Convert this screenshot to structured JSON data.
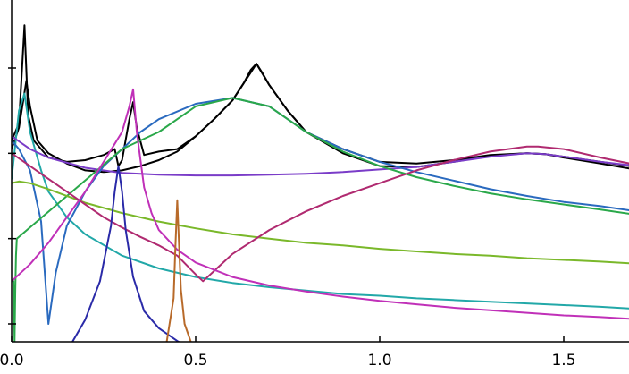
{
  "chart_data": {
    "type": "line",
    "title": "",
    "xlabel": "",
    "ylabel": "",
    "xlim": [
      0.0,
      1.68
    ],
    "ylim": [
      -2.25,
      1.55
    ],
    "x_ticks": [
      0.0,
      0.5,
      1.0,
      1.5
    ],
    "x_tick_labels": [
      "0.0",
      "0.5",
      "1.0",
      "1.5"
    ],
    "y_ticks": [
      -2,
      -1,
      0,
      1
    ],
    "grid": false,
    "legend": "none",
    "series": [
      {
        "color": "#000000",
        "x": [
          0.0,
          0.02,
          0.035,
          0.045,
          0.06,
          0.1,
          0.15,
          0.2,
          0.25,
          0.28,
          0.29,
          0.3,
          0.32,
          0.33,
          0.34,
          0.36,
          0.4,
          0.45,
          0.5,
          0.55,
          0.6,
          0.63,
          0.65,
          0.665,
          0.68,
          0.7,
          0.75,
          0.8,
          0.9,
          1.0,
          1.1,
          1.2,
          1.3,
          1.4,
          1.45,
          1.5,
          1.6,
          1.68
        ],
        "y": [
          0.15,
          0.35,
          1.5,
          0.45,
          0.15,
          -0.05,
          -0.1,
          -0.08,
          -0.02,
          0.05,
          -0.15,
          -0.08,
          0.4,
          0.6,
          0.3,
          -0.02,
          0.02,
          0.05,
          0.2,
          0.4,
          0.62,
          0.82,
          0.98,
          1.05,
          0.95,
          0.8,
          0.5,
          0.25,
          0.05,
          -0.1,
          -0.12,
          -0.08,
          -0.02,
          0.0,
          -0.01,
          -0.05,
          -0.12,
          -0.18
        ]
      },
      {
        "color": "#000000",
        "x": [
          0.0,
          0.02,
          0.04,
          0.05,
          0.07,
          0.1,
          0.15,
          0.2,
          0.25,
          0.3,
          0.35,
          0.4,
          0.45,
          0.5,
          0.55,
          0.6,
          0.65,
          0.665,
          0.7,
          0.75,
          0.8,
          0.9,
          1.0,
          1.1,
          1.2,
          1.3,
          1.4,
          1.45,
          1.5,
          1.6,
          1.68
        ],
        "y": [
          0.05,
          0.3,
          0.85,
          0.55,
          0.15,
          0.0,
          -0.12,
          -0.2,
          -0.22,
          -0.2,
          -0.15,
          -0.08,
          0.02,
          0.2,
          0.4,
          0.62,
          0.95,
          1.05,
          0.8,
          0.5,
          0.25,
          0.0,
          -0.15,
          -0.16,
          -0.1,
          -0.03,
          0.0,
          -0.01,
          -0.04,
          -0.1,
          -0.15
        ]
      },
      {
        "color": "#22a8a8",
        "x": [
          0.0,
          0.02,
          0.035,
          0.05,
          0.08,
          0.1,
          0.15,
          0.2,
          0.3,
          0.4,
          0.5,
          0.6,
          0.7,
          0.8,
          0.9,
          1.0,
          1.1,
          1.2,
          1.3,
          1.4,
          1.5,
          1.6,
          1.68
        ],
        "y": [
          -0.3,
          0.5,
          0.7,
          0.25,
          -0.2,
          -0.45,
          -0.75,
          -0.95,
          -1.2,
          -1.35,
          -1.45,
          -1.52,
          -1.57,
          -1.61,
          -1.65,
          -1.67,
          -1.7,
          -1.72,
          -1.74,
          -1.76,
          -1.78,
          -1.8,
          -1.82
        ]
      },
      {
        "color": "#7a3cc8",
        "x": [
          0.0,
          0.05,
          0.1,
          0.2,
          0.3,
          0.4,
          0.5,
          0.6,
          0.7,
          0.8,
          0.9,
          1.0,
          1.1,
          1.2,
          1.3,
          1.4,
          1.45,
          1.5,
          1.6,
          1.68
        ],
        "y": [
          0.2,
          0.05,
          -0.05,
          -0.17,
          -0.23,
          -0.25,
          -0.26,
          -0.26,
          -0.25,
          -0.24,
          -0.22,
          -0.19,
          -0.16,
          -0.1,
          -0.04,
          0.0,
          -0.01,
          -0.04,
          -0.1,
          -0.14
        ]
      },
      {
        "color": "#2a6abf",
        "x": [
          0.0,
          0.02,
          0.05,
          0.08,
          0.1,
          0.12,
          0.15,
          0.2,
          0.25,
          0.3,
          0.35,
          0.4,
          0.5,
          0.6,
          0.7,
          0.8,
          0.9,
          1.0,
          1.1,
          1.2,
          1.3,
          1.4,
          1.5,
          1.6,
          1.68
        ],
        "y": [
          0.15,
          0.05,
          -0.2,
          -0.8,
          -2.0,
          -1.4,
          -0.85,
          -0.45,
          -0.15,
          0.05,
          0.25,
          0.4,
          0.58,
          0.65,
          0.55,
          0.25,
          0.05,
          -0.1,
          -0.22,
          -0.32,
          -0.42,
          -0.5,
          -0.57,
          -0.62,
          -0.67
        ]
      },
      {
        "color": "#2aa84a",
        "x": [
          0.0,
          0.005,
          0.008,
          0.01,
          0.012,
          0.014,
          0.3,
          0.35,
          0.4,
          0.45,
          0.5,
          0.6,
          0.7,
          0.8,
          0.9,
          1.0,
          1.1,
          1.2,
          1.3,
          1.4,
          1.5,
          1.6,
          1.68
        ],
        "y": [
          -1.5,
          -1.5,
          -2.2,
          -1.6,
          -1.2,
          -1.0,
          0.05,
          0.15,
          0.25,
          0.4,
          0.55,
          0.65,
          0.55,
          0.25,
          0.02,
          -0.15,
          -0.28,
          -0.38,
          -0.47,
          -0.54,
          -0.6,
          -0.66,
          -0.71
        ]
      },
      {
        "color": "#7ab82a",
        "x": [
          0.0,
          0.02,
          0.05,
          0.1,
          0.2,
          0.3,
          0.4,
          0.5,
          0.6,
          0.7,
          0.8,
          0.9,
          1.0,
          1.1,
          1.2,
          1.3,
          1.4,
          1.5,
          1.6,
          1.68
        ],
        "y": [
          -0.35,
          -0.33,
          -0.35,
          -0.42,
          -0.58,
          -0.7,
          -0.8,
          -0.88,
          -0.95,
          -1.0,
          -1.05,
          -1.08,
          -1.12,
          -1.15,
          -1.18,
          -1.2,
          -1.23,
          -1.25,
          -1.27,
          -1.29
        ]
      },
      {
        "color": "#b02a70",
        "x": [
          0.0,
          0.05,
          0.1,
          0.15,
          0.2,
          0.25,
          0.3,
          0.35,
          0.4,
          0.45,
          0.5,
          0.52,
          0.55,
          0.6,
          0.7,
          0.8,
          0.9,
          1.0,
          1.1,
          1.2,
          1.3,
          1.4,
          1.43,
          1.5,
          1.6,
          1.68
        ],
        "y": [
          0.0,
          -0.15,
          -0.3,
          -0.45,
          -0.6,
          -0.75,
          -0.87,
          -0.98,
          -1.08,
          -1.2,
          -1.42,
          -1.5,
          -1.38,
          -1.18,
          -0.9,
          -0.68,
          -0.5,
          -0.35,
          -0.2,
          -0.08,
          0.02,
          0.08,
          0.08,
          0.05,
          -0.05,
          -0.12
        ]
      },
      {
        "color": "#c030b8",
        "x": [
          0.0,
          0.05,
          0.1,
          0.15,
          0.2,
          0.25,
          0.3,
          0.32,
          0.33,
          0.34,
          0.36,
          0.38,
          0.4,
          0.45,
          0.5,
          0.6,
          0.7,
          0.8,
          0.9,
          1.0,
          1.1,
          1.2,
          1.3,
          1.4,
          1.5,
          1.6,
          1.68
        ],
        "y": [
          -1.5,
          -1.3,
          -1.05,
          -0.75,
          -0.45,
          -0.1,
          0.25,
          0.55,
          0.75,
          0.25,
          -0.4,
          -0.7,
          -0.9,
          -1.13,
          -1.28,
          -1.45,
          -1.55,
          -1.62,
          -1.68,
          -1.73,
          -1.77,
          -1.81,
          -1.84,
          -1.87,
          -1.9,
          -1.92,
          -1.94
        ]
      },
      {
        "color": "#2a2aa8",
        "x": [
          0.16,
          0.2,
          0.24,
          0.27,
          0.28,
          0.29,
          0.3,
          0.31,
          0.33,
          0.36,
          0.4,
          0.45,
          0.47
        ],
        "y": [
          -2.25,
          -1.95,
          -1.5,
          -0.85,
          -0.45,
          -0.15,
          -0.45,
          -0.9,
          -1.45,
          -1.85,
          -2.05,
          -2.2,
          -2.25
        ]
      },
      {
        "color": "#b86a2a",
        "x": [
          0.42,
          0.44,
          0.445,
          0.45,
          0.455,
          0.46,
          0.47,
          0.49
        ],
        "y": [
          -2.25,
          -1.7,
          -1.1,
          -0.55,
          -1.1,
          -1.6,
          -2.0,
          -2.25
        ]
      }
    ]
  }
}
